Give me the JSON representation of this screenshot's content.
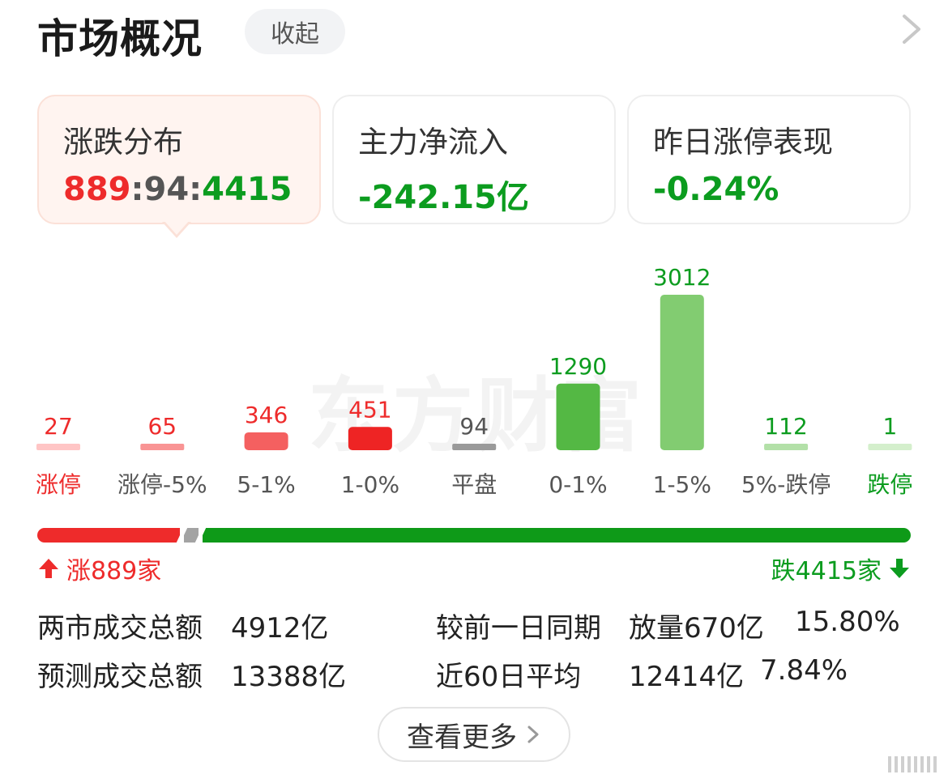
{
  "header": {
    "title": "市场概况",
    "collapse_label": "收起"
  },
  "cards": [
    {
      "label": "涨跌分布",
      "up": "889",
      "sep1": ":",
      "flat": "94",
      "sep2": ":",
      "down": "4415"
    },
    {
      "label": "主力净流入",
      "value": "-242.15亿"
    },
    {
      "label": "昨日涨停表现",
      "value": "-0.24%"
    }
  ],
  "watermark": "东方财富",
  "colors": {
    "up": "#ee2b2b",
    "down": "#0c9c1f",
    "flat": "#9a9a9a"
  },
  "chart_data": {
    "type": "bar",
    "categories": [
      "涨停",
      "涨停-5%",
      "5-1%",
      "1-0%",
      "平盘",
      "0-1%",
      "1-5%",
      "5%-跌停",
      "跌停"
    ],
    "values": [
      27,
      65,
      346,
      451,
      94,
      1290,
      3012,
      112,
      1
    ],
    "value_labels": [
      "27",
      "65",
      "346",
      "451",
      "94",
      "1290",
      "3012",
      "112",
      "1"
    ],
    "bar_colors": [
      "#ffc5c5",
      "#f99494",
      "#f46060",
      "#ee2424",
      "#9a9a9a",
      "#54b844",
      "#82cc71",
      "#b3e0a8",
      "#d4efcc"
    ],
    "label_colors": [
      "#ee2b2b",
      "#ee2b2b",
      "#ee2b2b",
      "#ee2b2b",
      "#555555",
      "#0c9c1f",
      "#0c9c1f",
      "#0c9c1f",
      "#0c9c1f"
    ],
    "category_colors": [
      "#ee2b2b",
      "#555555",
      "#555555",
      "#555555",
      "#555555",
      "#555555",
      "#555555",
      "#555555",
      "#0c9c1f"
    ],
    "ylim": [
      0,
      3012
    ]
  },
  "ratio": {
    "up": 889,
    "flat": 94,
    "down": 4415,
    "up_label": "涨889家",
    "down_label": "跌4415家"
  },
  "stats": {
    "total_volume_label": "两市成交总额",
    "total_volume_value": "4912亿",
    "compare_label": "较前一日同期",
    "compare_change": "放量670亿",
    "compare_pct": "15.80%",
    "forecast_label": "预测成交总额",
    "forecast_value": "13388亿",
    "avg60_label": "近60日平均",
    "avg60_value": "12414亿",
    "avg60_pct": "7.84%"
  },
  "view_more": "查看更多"
}
